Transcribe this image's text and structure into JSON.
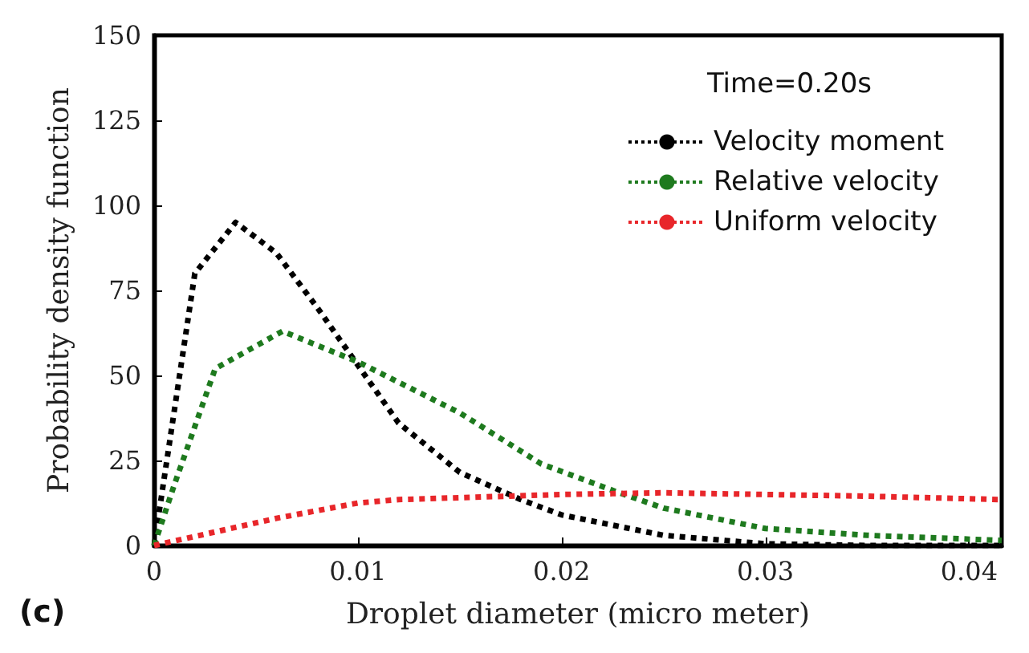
{
  "chart_data": {
    "type": "line",
    "xlabel": "Droplet diameter (micro meter)",
    "ylabel": "Probability density function",
    "legend_title": "Time=0.20s",
    "annotations": [
      "(c)"
    ],
    "xlim": [
      0,
      0.0416
    ],
    "xticks": [
      0,
      0.01,
      0.02,
      0.03,
      0.04
    ],
    "ylim": [
      0,
      150
    ],
    "yticks": [
      0,
      25,
      50,
      75,
      100,
      125,
      150
    ],
    "grid": false,
    "legend": "top right",
    "line_style": "dotted",
    "marker": "none",
    "series": [
      {
        "name": "Velocity moment",
        "color": "#000000",
        "x": [
          0,
          0.001,
          0.002,
          0.004,
          0.006,
          0.008,
          0.01,
          0.012,
          0.015,
          0.018,
          0.02,
          0.025,
          0.03,
          0.035,
          0.0416
        ],
        "values": [
          0,
          40,
          80,
          95,
          86,
          70,
          53,
          36,
          21.5,
          13.5,
          9,
          3,
          0.5,
          0,
          0
        ]
      },
      {
        "name": "Relative velocity",
        "color": "#1e7a1e",
        "x": [
          0,
          0.001,
          0.003,
          0.0063,
          0.01,
          0.015,
          0.019,
          0.0226,
          0.025,
          0.03,
          0.035,
          0.0416
        ],
        "values": [
          0,
          18,
          52,
          63,
          54,
          39,
          24,
          16,
          11,
          5,
          3,
          1.5
        ]
      },
      {
        "name": "Uniform velocity",
        "color": "#e8262a",
        "x": [
          0,
          0.003,
          0.006,
          0.01,
          0.012,
          0.02,
          0.025,
          0.03,
          0.035,
          0.0416
        ],
        "values": [
          0,
          4,
          8,
          12.5,
          13.5,
          15,
          15.5,
          15,
          14.5,
          13.5
        ]
      }
    ]
  }
}
